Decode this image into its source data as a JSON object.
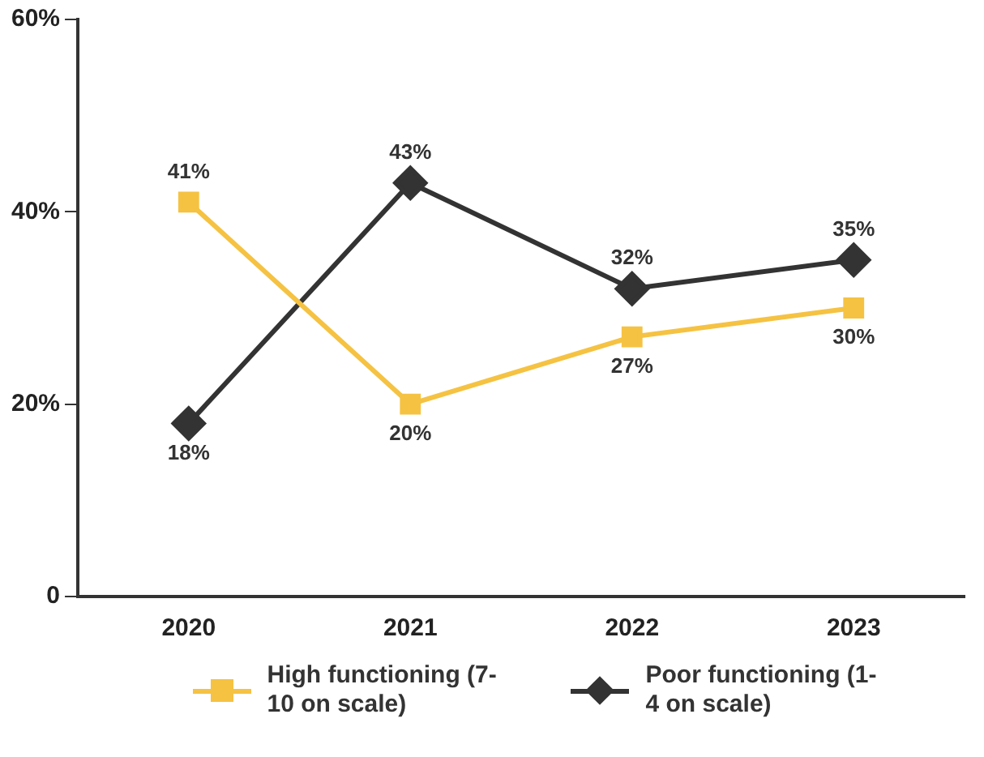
{
  "chart_data": {
    "type": "line",
    "categories": [
      "2020",
      "2021",
      "2022",
      "2023"
    ],
    "series": [
      {
        "name": "High functioning (7-10 on scale)",
        "color": "#f5c242",
        "marker": "square",
        "values": [
          41,
          20,
          27,
          30
        ],
        "value_labels": [
          "41%",
          "20%",
          "27%",
          "30%"
        ]
      },
      {
        "name": "Poor functioning (1-4 on scale)",
        "color": "#333333",
        "marker": "diamond",
        "values": [
          18,
          43,
          32,
          35
        ],
        "value_labels": [
          "18%",
          "43%",
          "32%",
          "35%"
        ]
      }
    ],
    "ylim": [
      0,
      60
    ],
    "yticks": [
      {
        "value": 0,
        "label": "0"
      },
      {
        "value": 20,
        "label": "20%"
      },
      {
        "value": 40,
        "label": "40%"
      },
      {
        "value": 60,
        "label": "60%"
      }
    ],
    "grid": false,
    "legend": "bottom"
  }
}
